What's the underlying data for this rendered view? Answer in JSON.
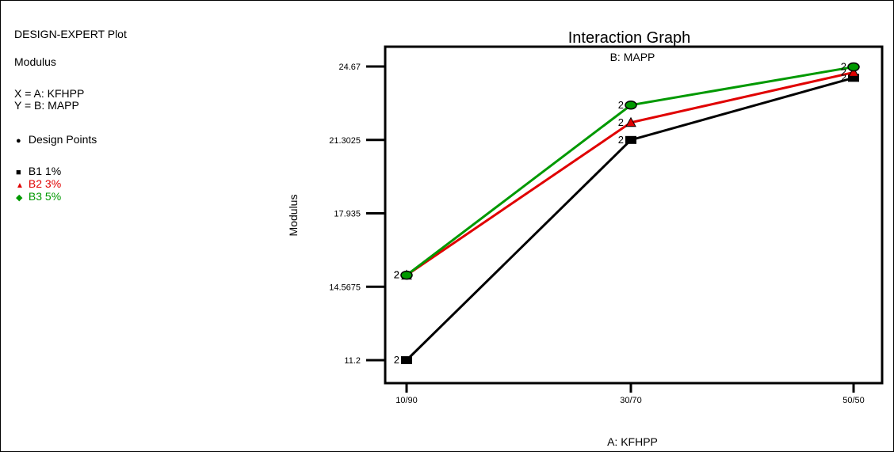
{
  "info_panel": {
    "plot_title": "DESIGN-EXPERT Plot",
    "response": "Modulus",
    "x_factor": "X = A: KFHPP",
    "y_factor": "Y = B: MAPP",
    "design_points_label": "Design Points",
    "legend": [
      {
        "label": "B1 1%",
        "color": "#000000",
        "marker": "square"
      },
      {
        "label": "B2 3%",
        "color": "#e00000",
        "marker": "triangle"
      },
      {
        "label": "B3 5%",
        "color": "#009900",
        "marker": "diamond"
      }
    ]
  },
  "chart_data": {
    "type": "line",
    "title": "Interaction Graph",
    "subtitle": "B: MAPP",
    "xlabel": "A: KFHPP",
    "ylabel": "Modulus",
    "categories": [
      "10/90",
      "30/70",
      "50/50"
    ],
    "y_ticks": [
      "11.2",
      "14.5675",
      "17.935",
      "21.3025",
      "24.67"
    ],
    "ylim": [
      11.2,
      24.67
    ],
    "point_label": "2",
    "series": [
      {
        "name": "B1 1%",
        "color": "#000000",
        "marker": "square",
        "values": [
          11.2,
          21.3,
          24.15
        ]
      },
      {
        "name": "B2 3%",
        "color": "#e00000",
        "marker": "triangle",
        "values": [
          15.1,
          22.1,
          24.4
        ]
      },
      {
        "name": "B3 5%",
        "color": "#009900",
        "marker": "diamond",
        "values": [
          15.1,
          22.9,
          24.65
        ]
      }
    ]
  }
}
